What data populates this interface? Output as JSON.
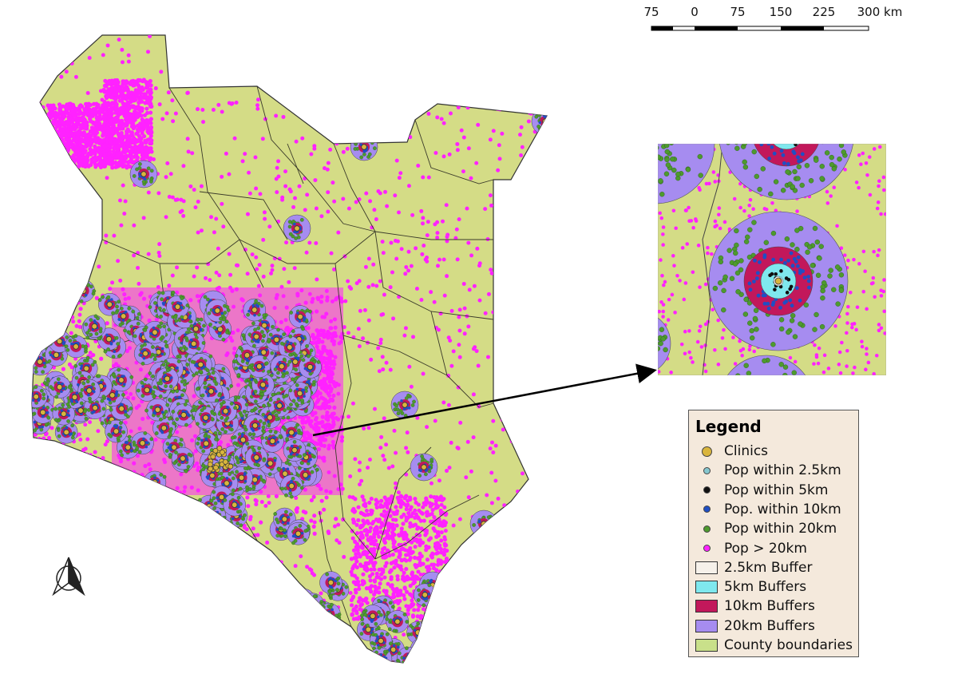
{
  "scale_bar": {
    "labels": [
      "75",
      "0",
      "75",
      "150",
      "225",
      "300 km"
    ]
  },
  "colors": {
    "land": "#d4dc86",
    "county_line": "#3a3a2a",
    "pop_far": "#ff22ff",
    "buffer_20km": "#a68cf0",
    "buffer_10km": "#c2185b",
    "buffer_5km": "#7fe8ee",
    "pop_20km": "#4e9a2e",
    "pop_10km": "#1f4fc4",
    "pop_5km": "#111111",
    "pop_2_5km": "#86c7cf",
    "clinic": "#d9b53d",
    "legend_bg": "#f4e9dc"
  },
  "north_arrow": {
    "icon": "north-arrow-icon"
  },
  "legend": {
    "title": "Legend",
    "items": [
      {
        "label": "Clinics",
        "kind": "dot",
        "color": "#d9b53d"
      },
      {
        "label": "Pop within 2.5km",
        "kind": "dot",
        "color": "#86c7cf"
      },
      {
        "label": "Pop within 5km",
        "kind": "dot",
        "color": "#111111"
      },
      {
        "label": "Pop. within 10km",
        "kind": "dot",
        "color": "#1f4fc4"
      },
      {
        "label": "Pop within 20km",
        "kind": "dot",
        "color": "#4e9a2e"
      },
      {
        "label": "Pop > 20km",
        "kind": "dot",
        "color": "#ff22ff"
      },
      {
        "label": "2.5km Buffer",
        "kind": "box",
        "color": "#f6f1ea"
      },
      {
        "label": "5km Buffers",
        "kind": "box",
        "color": "#7fe8ee"
      },
      {
        "label": "10km Buffers",
        "kind": "box",
        "color": "#c2185b"
      },
      {
        "label": "20km Buffers",
        "kind": "box",
        "color": "#a68cf0"
      },
      {
        "label": "County boundaries",
        "kind": "box",
        "color": "#c9e08a"
      }
    ]
  }
}
